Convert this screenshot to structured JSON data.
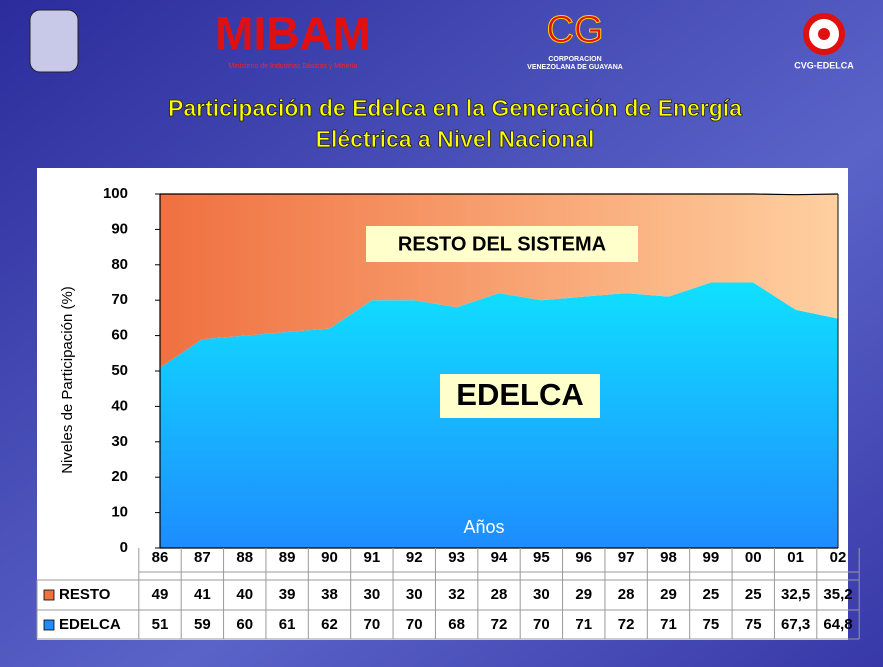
{
  "header": {
    "mibam_logo": "MIBAM",
    "mibam_caption": "Ministerio de Industrias Básicas y Minería",
    "cvg_logo": "CG",
    "cvg_caption": [
      "CORPORACION",
      "VENEZOLANA DE GUAYANA"
    ],
    "edelca_caption": "CVG-EDELCA"
  },
  "chart_data": {
    "type": "stacked_area",
    "title": [
      "Participación de Edelca en la Generación  de Energía",
      "Eléctrica a Nivel Nacional"
    ],
    "y_label": "Niveles de Participación (%)",
    "x_label": "Años",
    "annotations": [
      "RESTO DEL SISTEMA",
      "EDELCA"
    ],
    "categories": [
      "86",
      "87",
      "88",
      "89",
      "90",
      "91",
      "92",
      "93",
      "94",
      "95",
      "96",
      "97",
      "98",
      "99",
      "00",
      "01",
      "02"
    ],
    "series": [
      {
        "name": "EDELCA",
        "color": "#1e8cff",
        "values": [
          51,
          59,
          60,
          61,
          62,
          70,
          70,
          68,
          72,
          70,
          71,
          72,
          71,
          75,
          75,
          67.3,
          64.8
        ],
        "value_labels": [
          "51",
          "59",
          "60",
          "61",
          "62",
          "70",
          "70",
          "68",
          "72",
          "70",
          "71",
          "72",
          "71",
          "75",
          "75",
          "67,3",
          "64,8"
        ]
      },
      {
        "name": "RESTO",
        "color": "#f07040",
        "values": [
          49,
          41,
          40,
          39,
          38,
          30,
          30,
          32,
          28,
          30,
          29,
          28,
          29,
          25,
          25,
          32.5,
          35.2
        ],
        "value_labels": [
          "49",
          "41",
          "40",
          "39",
          "38",
          "30",
          "30",
          "32",
          "28",
          "30",
          "29",
          "28",
          "29",
          "25",
          "25",
          "32,5",
          "35,2"
        ]
      }
    ],
    "ylim": [
      0,
      100
    ],
    "yticks": [
      0,
      10,
      20,
      30,
      40,
      50,
      60,
      70,
      80,
      90,
      100
    ],
    "grid": false
  }
}
